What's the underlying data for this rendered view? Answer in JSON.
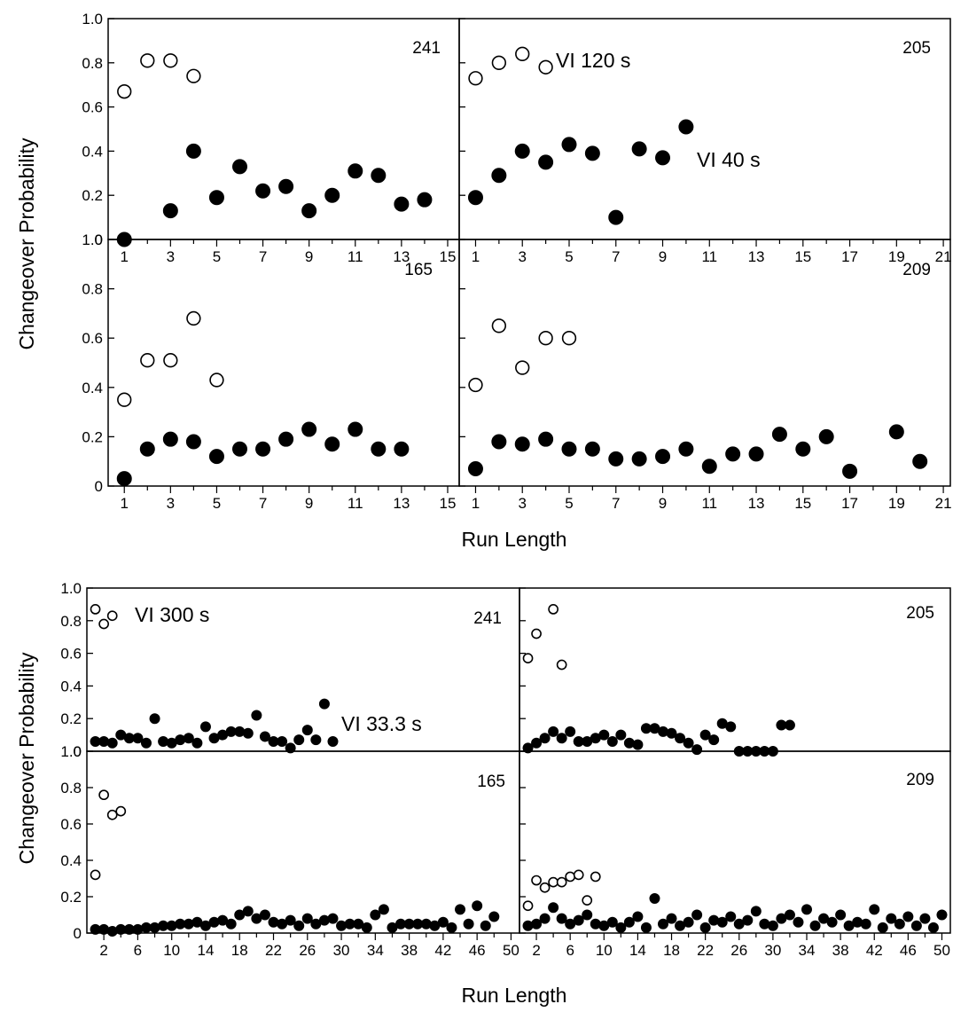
{
  "chart_data": [
    {
      "type": "scatter",
      "panel": "top-left",
      "subject": "241",
      "x_ticks": [
        "1",
        "3",
        "5",
        "7",
        "9",
        "11",
        "13",
        "15"
      ],
      "y_ticks": [
        "0",
        "0.2",
        "0.4",
        "0.6",
        "0.8",
        "1.0"
      ],
      "xlim": [
        0.3,
        15.5
      ],
      "ylim": [
        0,
        1.0
      ],
      "ylabel": "Changeover Probability",
      "series": [
        {
          "marker": "open",
          "x": [
            1,
            2,
            3,
            4
          ],
          "y": [
            0.67,
            0.81,
            0.81,
            0.74
          ]
        },
        {
          "marker": "filled",
          "x": [
            1,
            3,
            4,
            5,
            6,
            7,
            8,
            9,
            10,
            11,
            12,
            13,
            14
          ],
          "y": [
            0.0,
            0.13,
            0.4,
            0.19,
            0.33,
            0.22,
            0.24,
            0.13,
            0.2,
            0.31,
            0.29,
            0.16,
            0.18
          ]
        }
      ]
    },
    {
      "type": "scatter",
      "panel": "top-right",
      "subject": "205",
      "annotations": [
        "VI 120 s",
        "VI 40 s"
      ],
      "x_ticks": [
        "1",
        "3",
        "5",
        "7",
        "9",
        "11",
        "13",
        "15",
        "17",
        "19",
        "21"
      ],
      "xlim": [
        0.3,
        21.3
      ],
      "ylim": [
        0,
        1.0
      ],
      "series": [
        {
          "marker": "open",
          "x": [
            1,
            2,
            3,
            4
          ],
          "y": [
            0.73,
            0.8,
            0.84,
            0.78
          ]
        },
        {
          "marker": "filled",
          "x": [
            1,
            2,
            3,
            4,
            5,
            6,
            7,
            8,
            9,
            10
          ],
          "y": [
            0.19,
            0.29,
            0.4,
            0.35,
            0.43,
            0.39,
            0.1,
            0.41,
            0.37,
            0.51
          ]
        }
      ]
    },
    {
      "type": "scatter",
      "panel": "middle-left",
      "subject": "165",
      "x_ticks": [
        "1",
        "3",
        "5",
        "7",
        "9",
        "11",
        "13",
        "15"
      ],
      "y_ticks": [
        "0",
        "0.2",
        "0.4",
        "0.6",
        "0.8",
        "1.0"
      ],
      "xlim": [
        0.3,
        15.5
      ],
      "ylim": [
        0,
        1.0
      ],
      "xlabel": "Run Length",
      "series": [
        {
          "marker": "open",
          "x": [
            1,
            2,
            3,
            4,
            5
          ],
          "y": [
            0.35,
            0.51,
            0.51,
            0.68,
            0.43
          ]
        },
        {
          "marker": "filled",
          "x": [
            1,
            2,
            3,
            4,
            5,
            6,
            7,
            8,
            9,
            10,
            11,
            12,
            13
          ],
          "y": [
            0.03,
            0.15,
            0.19,
            0.18,
            0.12,
            0.15,
            0.15,
            0.19,
            0.23,
            0.17,
            0.23,
            0.15,
            0.15
          ]
        }
      ]
    },
    {
      "type": "scatter",
      "panel": "middle-right",
      "subject": "209",
      "x_ticks": [
        "1",
        "3",
        "5",
        "7",
        "9",
        "11",
        "13",
        "15",
        "17",
        "19",
        "21"
      ],
      "xlim": [
        0.3,
        21.3
      ],
      "ylim": [
        0,
        1.0
      ],
      "xlabel": "Run Length",
      "series": [
        {
          "marker": "open",
          "x": [
            1,
            2,
            3,
            4,
            5
          ],
          "y": [
            0.41,
            0.65,
            0.48,
            0.6,
            0.6
          ]
        },
        {
          "marker": "filled",
          "x": [
            1,
            2,
            3,
            4,
            5,
            6,
            7,
            8,
            9,
            10,
            11,
            12,
            13,
            14,
            15,
            16,
            17,
            19,
            20
          ],
          "y": [
            0.07,
            0.18,
            0.17,
            0.19,
            0.15,
            0.15,
            0.11,
            0.11,
            0.12,
            0.15,
            0.08,
            0.13,
            0.13,
            0.21,
            0.15,
            0.2,
            0.06,
            0.22,
            0.1
          ]
        }
      ]
    },
    {
      "type": "scatter",
      "panel": "bottom-left-upper",
      "subject": "241",
      "annotations": [
        "VI 300 s",
        "VI 33.3 s"
      ],
      "y_ticks": [
        "0",
        "0.2",
        "0.4",
        "0.6",
        "0.8",
        "1.0"
      ],
      "xlim": [
        0,
        51
      ],
      "ylim": [
        0,
        1.0
      ],
      "ylabel": "Changeover Probability",
      "series": [
        {
          "marker": "open",
          "x": [
            1,
            2,
            3
          ],
          "y": [
            0.87,
            0.78,
            0.83
          ]
        },
        {
          "marker": "filled",
          "x": [
            1,
            2,
            3,
            4,
            5,
            6,
            7,
            8,
            9,
            10,
            11,
            12,
            13,
            14,
            15,
            16,
            17,
            18,
            19,
            20,
            21,
            22,
            23,
            24,
            25,
            26,
            27,
            28,
            29
          ],
          "y": [
            0.06,
            0.06,
            0.05,
            0.1,
            0.08,
            0.08,
            0.05,
            0.2,
            0.06,
            0.05,
            0.07,
            0.08,
            0.05,
            0.15,
            0.08,
            0.1,
            0.12,
            0.12,
            0.11,
            0.22,
            0.09,
            0.06,
            0.06,
            0.02,
            0.07,
            0.13,
            0.07,
            0.29,
            0.06
          ]
        }
      ]
    },
    {
      "type": "scatter",
      "panel": "bottom-right-upper",
      "subject": "205",
      "xlim": [
        0,
        51
      ],
      "ylim": [
        0,
        1.0
      ],
      "series": [
        {
          "marker": "open",
          "x": [
            1,
            2,
            4,
            5
          ],
          "y": [
            0.57,
            0.72,
            0.87,
            0.53
          ]
        },
        {
          "marker": "filled",
          "x": [
            1,
            2,
            3,
            4,
            5,
            6,
            7,
            8,
            9,
            10,
            11,
            12,
            13,
            14,
            15,
            16,
            17,
            18,
            19,
            20,
            21,
            22,
            23,
            24,
            25,
            26,
            27,
            28,
            29,
            30,
            31,
            32
          ],
          "y": [
            0.02,
            0.05,
            0.08,
            0.12,
            0.08,
            0.12,
            0.06,
            0.06,
            0.08,
            0.1,
            0.06,
            0.1,
            0.05,
            0.04,
            0.14,
            0.14,
            0.12,
            0.11,
            0.08,
            0.05,
            0.01,
            0.1,
            0.07,
            0.17,
            0.15,
            0.0,
            0.0,
            0.0,
            0.0,
            0.0,
            0.16,
            0.16
          ]
        }
      ]
    },
    {
      "type": "scatter",
      "panel": "bottom-left-lower",
      "subject": "165",
      "x_ticks": [
        "2",
        "6",
        "10",
        "14",
        "18",
        "22",
        "26",
        "30",
        "34",
        "38",
        "42",
        "46",
        "50"
      ],
      "y_ticks": [
        "0",
        "0.2",
        "0.4",
        "0.6",
        "0.8",
        "1.0"
      ],
      "xlim": [
        0,
        51
      ],
      "ylim": [
        0,
        1.0
      ],
      "ylabel": "Changeover Probability",
      "xlabel": "Run Length",
      "series": [
        {
          "marker": "open",
          "x": [
            1,
            2,
            3,
            4
          ],
          "y": [
            0.32,
            0.76,
            0.65,
            0.67
          ]
        },
        {
          "marker": "filled",
          "x": [
            1,
            2,
            3,
            4,
            5,
            6,
            7,
            8,
            9,
            10,
            11,
            12,
            13,
            14,
            15,
            16,
            17,
            18,
            19,
            20,
            21,
            22,
            23,
            24,
            25,
            26,
            27,
            28,
            29,
            30,
            31,
            32,
            33,
            34,
            35,
            36,
            37,
            38,
            39,
            40,
            41,
            42,
            43,
            44,
            45,
            46,
            47,
            48
          ],
          "y": [
            0.02,
            0.02,
            0.01,
            0.02,
            0.02,
            0.02,
            0.03,
            0.03,
            0.04,
            0.04,
            0.05,
            0.05,
            0.06,
            0.04,
            0.06,
            0.07,
            0.05,
            0.1,
            0.12,
            0.08,
            0.1,
            0.06,
            0.05,
            0.07,
            0.04,
            0.08,
            0.05,
            0.07,
            0.08,
            0.04,
            0.05,
            0.05,
            0.03,
            0.1,
            0.13,
            0.03,
            0.05,
            0.05,
            0.05,
            0.05,
            0.04,
            0.06,
            0.03,
            0.13,
            0.05,
            0.15,
            0.04,
            0.09
          ]
        }
      ]
    },
    {
      "type": "scatter",
      "panel": "bottom-right-lower",
      "subject": "209",
      "x_ticks": [
        "2",
        "6",
        "10",
        "14",
        "18",
        "22",
        "26",
        "30",
        "34",
        "38",
        "42",
        "46",
        "50"
      ],
      "xlim": [
        0,
        51
      ],
      "ylim": [
        0,
        1.0
      ],
      "xlabel": "Run Length",
      "series": [
        {
          "marker": "open",
          "x": [
            1,
            2,
            3,
            4,
            5,
            6,
            7,
            8,
            9
          ],
          "y": [
            0.15,
            0.29,
            0.25,
            0.28,
            0.28,
            0.31,
            0.32,
            0.18,
            0.31
          ]
        },
        {
          "marker": "filled",
          "x": [
            1,
            2,
            3,
            4,
            5,
            6,
            7,
            8,
            9,
            10,
            11,
            12,
            13,
            14,
            15,
            16,
            17,
            18,
            19,
            20,
            21,
            22,
            23,
            24,
            25,
            26,
            27,
            28,
            29,
            30,
            31,
            32,
            33,
            34,
            35,
            36,
            37,
            38,
            39,
            40,
            41,
            42,
            43,
            44,
            45,
            46,
            47,
            48,
            49,
            50
          ],
          "y": [
            0.04,
            0.05,
            0.08,
            0.14,
            0.08,
            0.05,
            0.07,
            0.1,
            0.05,
            0.04,
            0.06,
            0.03,
            0.06,
            0.09,
            0.03,
            0.19,
            0.05,
            0.08,
            0.04,
            0.06,
            0.1,
            0.03,
            0.07,
            0.06,
            0.09,
            0.05,
            0.07,
            0.12,
            0.05,
            0.04,
            0.08,
            0.1,
            0.06,
            0.13,
            0.04,
            0.08,
            0.06,
            0.1,
            0.04,
            0.06,
            0.05,
            0.13,
            0.03,
            0.08,
            0.05,
            0.09,
            0.04,
            0.08,
            0.03,
            0.1
          ]
        }
      ]
    }
  ],
  "figure": {
    "top_xlabel": "Run Length",
    "bottom_xlabel": "Run Length",
    "top_ylabel": "Changeover Probability",
    "bottom_ylabel": "Changeover Probability"
  }
}
